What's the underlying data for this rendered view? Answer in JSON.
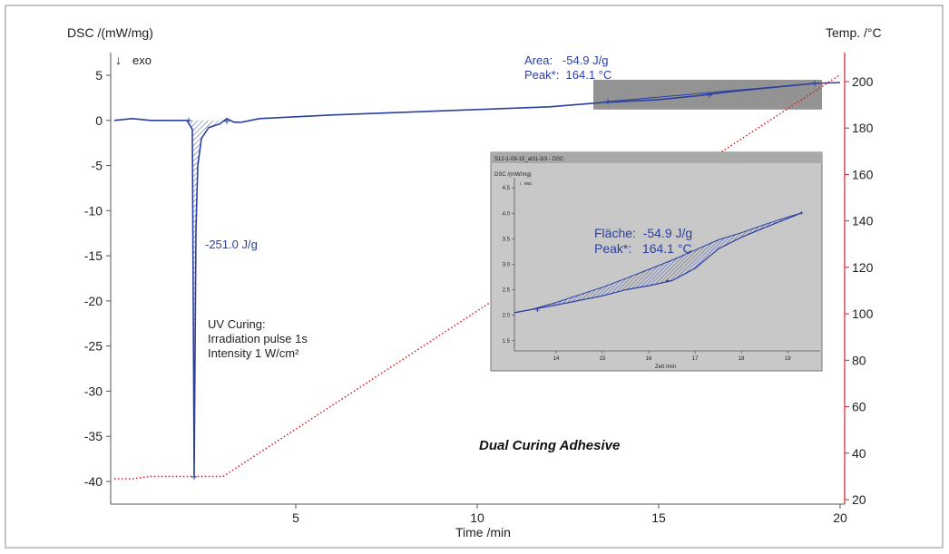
{
  "colors": {
    "dsc": "#2b3fa0",
    "temp": "#d2232a",
    "axis": "#555555",
    "frame": "#8a8a8a",
    "inset_bg": "#c8c8c8",
    "inset_title_bar": "#a9a9a9",
    "highlight_box": "#808080"
  },
  "chart_data": [
    {
      "type": "line",
      "title": "Dual Curing Adhesive",
      "xlabel": "Time /min",
      "ylabel": "DSC /(mW/mg)",
      "y2label": "Temp. /°C",
      "exo_label": "exo",
      "xlim": [
        0,
        20
      ],
      "ylim": [
        -41,
        7
      ],
      "y2lim": [
        20,
        208
      ],
      "x_ticks": [
        5,
        10,
        15,
        20
      ],
      "y_ticks": [
        5,
        0,
        -5,
        -10,
        -15,
        -20,
        -25,
        -30,
        -35,
        -40
      ],
      "y2_ticks": [
        200,
        180,
        160,
        140,
        120,
        100,
        80,
        60,
        40,
        20
      ],
      "series": [
        {
          "axis": "left",
          "color": "#2b3fa0",
          "points": [
            [
              0,
              0.0
            ],
            [
              0.5,
              0.2
            ],
            [
              1.0,
              0.0
            ],
            [
              2.0,
              0.0
            ],
            [
              2.15,
              -1.0
            ],
            [
              2.2,
              -39.5
            ],
            [
              2.25,
              -12.0
            ],
            [
              2.3,
              -5.0
            ],
            [
              2.4,
              -2.0
            ],
            [
              2.6,
              -0.8
            ],
            [
              2.9,
              -0.4
            ],
            [
              3.1,
              0.2
            ],
            [
              3.3,
              -0.2
            ],
            [
              3.5,
              -0.2
            ],
            [
              4.0,
              0.2
            ],
            [
              5,
              0.4
            ],
            [
              6,
              0.6
            ],
            [
              8,
              0.9
            ],
            [
              10,
              1.2
            ],
            [
              12,
              1.5
            ],
            [
              13.5,
              2.0
            ],
            [
              15,
              2.3
            ],
            [
              16,
              2.7
            ],
            [
              17,
              3.2
            ],
            [
              18,
              3.6
            ],
            [
              19.3,
              4.1
            ],
            [
              20,
              4.2
            ]
          ]
        },
        {
          "axis": "right",
          "color": "#d2232a",
          "style": "dotted",
          "points": [
            [
              0,
              29
            ],
            [
              0.5,
              29
            ],
            [
              1,
              30
            ],
            [
              2,
              30
            ],
            [
              3,
              30
            ],
            [
              20,
              203
            ]
          ]
        }
      ],
      "annotations": [
        {
          "text": "-251.0 J/g"
        },
        {
          "text": "UV Curing:"
        },
        {
          "text": "Irradiation pulse 1s"
        },
        {
          "text": "Intensity 1 W/cm²"
        },
        {
          "text": "Area:   -54.9 J/g"
        },
        {
          "text": "Peak*:  164.1 °C"
        }
      ],
      "highlight_region": {
        "x": [
          13.2,
          19.5
        ],
        "y": [
          1.2,
          4.5
        ]
      }
    },
    {
      "type": "line",
      "title": "S12-1-09-15_al31-3/3 - DSC",
      "xlabel": "Zeit /min",
      "ylabel": "DSC /(mW/mg)",
      "exo_label": "exo",
      "xlim": [
        13.1,
        19.7
      ],
      "ylim": [
        1.3,
        4.7
      ],
      "x_ticks": [
        14,
        15,
        16,
        17,
        18,
        19
      ],
      "y_ticks": [
        "4.5",
        "4.0",
        "3.5",
        "3.0",
        "2.5",
        "2.0",
        "1.5"
      ],
      "series": [
        {
          "color": "#2b3fa0",
          "points": [
            [
              13.1,
              2.05
            ],
            [
              13.5,
              2.12
            ],
            [
              14,
              2.25
            ],
            [
              14.5,
              2.4
            ],
            [
              15,
              2.55
            ],
            [
              15.5,
              2.72
            ],
            [
              16,
              2.9
            ],
            [
              16.5,
              3.08
            ],
            [
              17,
              3.28
            ],
            [
              17.5,
              3.48
            ],
            [
              18,
              3.62
            ],
            [
              18.5,
              3.78
            ],
            [
              19,
              3.93
            ],
            [
              19.3,
              4.01
            ]
          ]
        },
        {
          "color": "#2b3fa0",
          "points": [
            [
              13.1,
              2.05
            ],
            [
              14,
              2.2
            ],
            [
              15,
              2.38
            ],
            [
              15.5,
              2.5
            ],
            [
              16,
              2.58
            ],
            [
              16.5,
              2.68
            ],
            [
              17,
              2.92
            ],
            [
              17.5,
              3.3
            ],
            [
              18,
              3.53
            ],
            [
              18.5,
              3.72
            ],
            [
              19,
              3.9
            ],
            [
              19.3,
              4.01
            ]
          ]
        }
      ],
      "annotations": [
        {
          "text": "Fläche:  -54.9 J/g"
        },
        {
          "text": "Peak*:   164.1 °C"
        }
      ]
    }
  ]
}
